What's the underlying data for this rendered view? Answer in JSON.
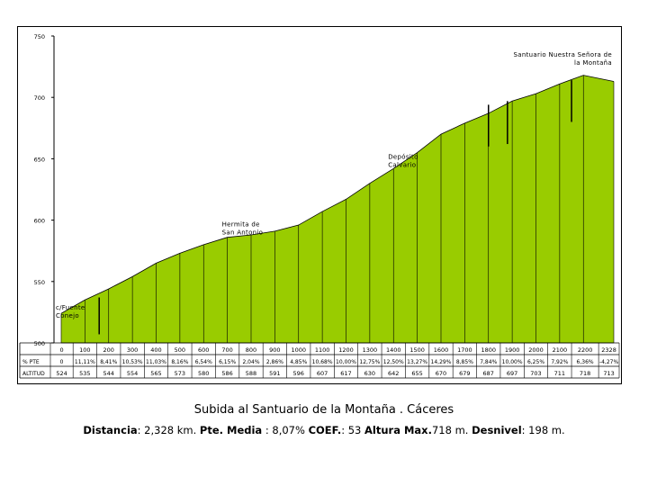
{
  "chart_data": {
    "type": "area",
    "x": [
      0,
      100,
      200,
      300,
      400,
      500,
      600,
      700,
      800,
      900,
      1000,
      1100,
      1200,
      1300,
      1400,
      1500,
      1600,
      1700,
      1800,
      1900,
      2000,
      2100,
      2200,
      2328
    ],
    "y": [
      524,
      535,
      544,
      554,
      565,
      573,
      580,
      586,
      588,
      591,
      596,
      607,
      617,
      630,
      642,
      655,
      670,
      679,
      687,
      697,
      703,
      711,
      718,
      713
    ],
    "tick_labels": [
      "0",
      "100",
      "200",
      "300",
      "400",
      "500",
      "600",
      "700",
      "800",
      "900",
      "1000",
      "1100",
      "1200",
      "1300",
      "1400",
      "1500",
      "1600",
      "1700",
      "1800",
      "1900",
      "2000",
      "2100",
      "2200",
      "2328"
    ],
    "pct_labels": [
      "0",
      "11,11%",
      "8,41%",
      "10,53%",
      "11,03%",
      "8,16%",
      "6,54%",
      "6,15%",
      "2,04%",
      "2,86%",
      "4,85%",
      "10,68%",
      "10,00%",
      "12,75%",
      "12,50%",
      "13,27%",
      "14,29%",
      "8,85%",
      "7,84%",
      "10,00%",
      "6,25%",
      "7,92%",
      "6,36%",
      "-4,27%"
    ],
    "alt_labels": [
      "524",
      "535",
      "544",
      "554",
      "565",
      "573",
      "580",
      "586",
      "588",
      "591",
      "596",
      "607",
      "617",
      "630",
      "642",
      "655",
      "670",
      "679",
      "687",
      "697",
      "703",
      "711",
      "718",
      "713"
    ],
    "row_labels": {
      "distance": "",
      "pct": "% PTE",
      "alt": "ALTITUD"
    },
    "ylim": [
      500,
      750
    ],
    "yticks": [
      500,
      550,
      600,
      650,
      700,
      750
    ],
    "xlim": [
      0,
      2328
    ],
    "grid": false,
    "annotations": [
      {
        "lines": [
          "c/Fuente",
          "Conejo"
        ],
        "x": 0,
        "y": 527
      },
      {
        "lines": [
          "Hermita de",
          "San Antonio"
        ],
        "x": 700,
        "y": 595
      },
      {
        "lines": [
          "Depósito",
          "Calvario"
        ],
        "x": 1400,
        "y": 650
      },
      {
        "lines": [
          "Santuario Nuestra Señora de",
          "la Montaña"
        ],
        "x": 2328,
        "y": 733,
        "align": "right"
      }
    ],
    "markers": [
      {
        "x": 160,
        "y_from": 537,
        "y_to": 507
      },
      {
        "x": 1800,
        "y_from": 694,
        "y_to": 660
      },
      {
        "x": 1880,
        "y_from": 697,
        "y_to": 662
      },
      {
        "x": 2150,
        "y_from": 714,
        "y_to": 680
      }
    ],
    "colors": {
      "fill": "#99CC00",
      "line": "#000000"
    }
  },
  "footer": {
    "title": "Subida al Santuario de la Montaña . Cáceres",
    "distance_label": "Distancia",
    "distance_value": ": 2,328 km. ",
    "pte_label": "Pte. Media",
    "pte_value": " : 8,07%  ",
    "coef_label": "COEF.",
    "coef_value": ": 53 ",
    "altmax_label": "Altura Max.",
    "altmax_value": "718 m. ",
    "desnivel_label": "Desnivel",
    "desnivel_value": ": 198 m."
  }
}
